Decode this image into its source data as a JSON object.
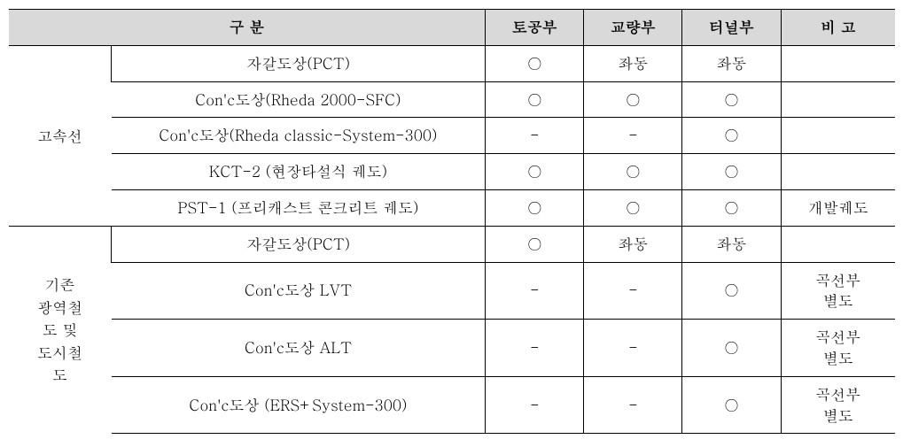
{
  "header": {
    "col_category": "구   분",
    "col_a": "토공부",
    "col_b": "교량부",
    "col_c": "터널부",
    "col_d": "비   고"
  },
  "group1": {
    "label": "고속선",
    "rows": [
      {
        "desc": "자갈도상(PCT)",
        "a": "○",
        "b": "좌동",
        "c": "좌동",
        "note": ""
      },
      {
        "desc": "Con'c도상(Rheda 2000-SFC)",
        "a": "○",
        "b": "○",
        "c": "○",
        "note": ""
      },
      {
        "desc": "Con'c도상(Rheda classic-System-300)",
        "a": "-",
        "b": "-",
        "c": "○",
        "note": ""
      },
      {
        "desc": "KCT-2 (현장타설식 궤도)",
        "a": "○",
        "b": "○",
        "c": "○",
        "note": ""
      },
      {
        "desc": "PST-1 (프리캐스트 콘크리트 궤도)",
        "a": "○",
        "b": "○",
        "c": "○",
        "note": "개발궤도"
      }
    ]
  },
  "group2": {
    "label": "기존\n광역철\n도 및\n도시철\n도",
    "rows": [
      {
        "desc": "자갈도상(PCT)",
        "a": "○",
        "b": "좌동",
        "c": "좌동",
        "note": ""
      },
      {
        "desc": "Con'c도상 LVT",
        "a": "-",
        "b": "-",
        "c": "○",
        "note": "곡선부\n별도"
      },
      {
        "desc": "Con'c도상 ALT",
        "a": "-",
        "b": "-",
        "c": "○",
        "note": "곡선부\n별도"
      },
      {
        "desc": "Con'c도상 (ERS+System-300)",
        "a": "-",
        "b": "-",
        "c": "○",
        "note": "곡선부\n별도"
      }
    ]
  }
}
